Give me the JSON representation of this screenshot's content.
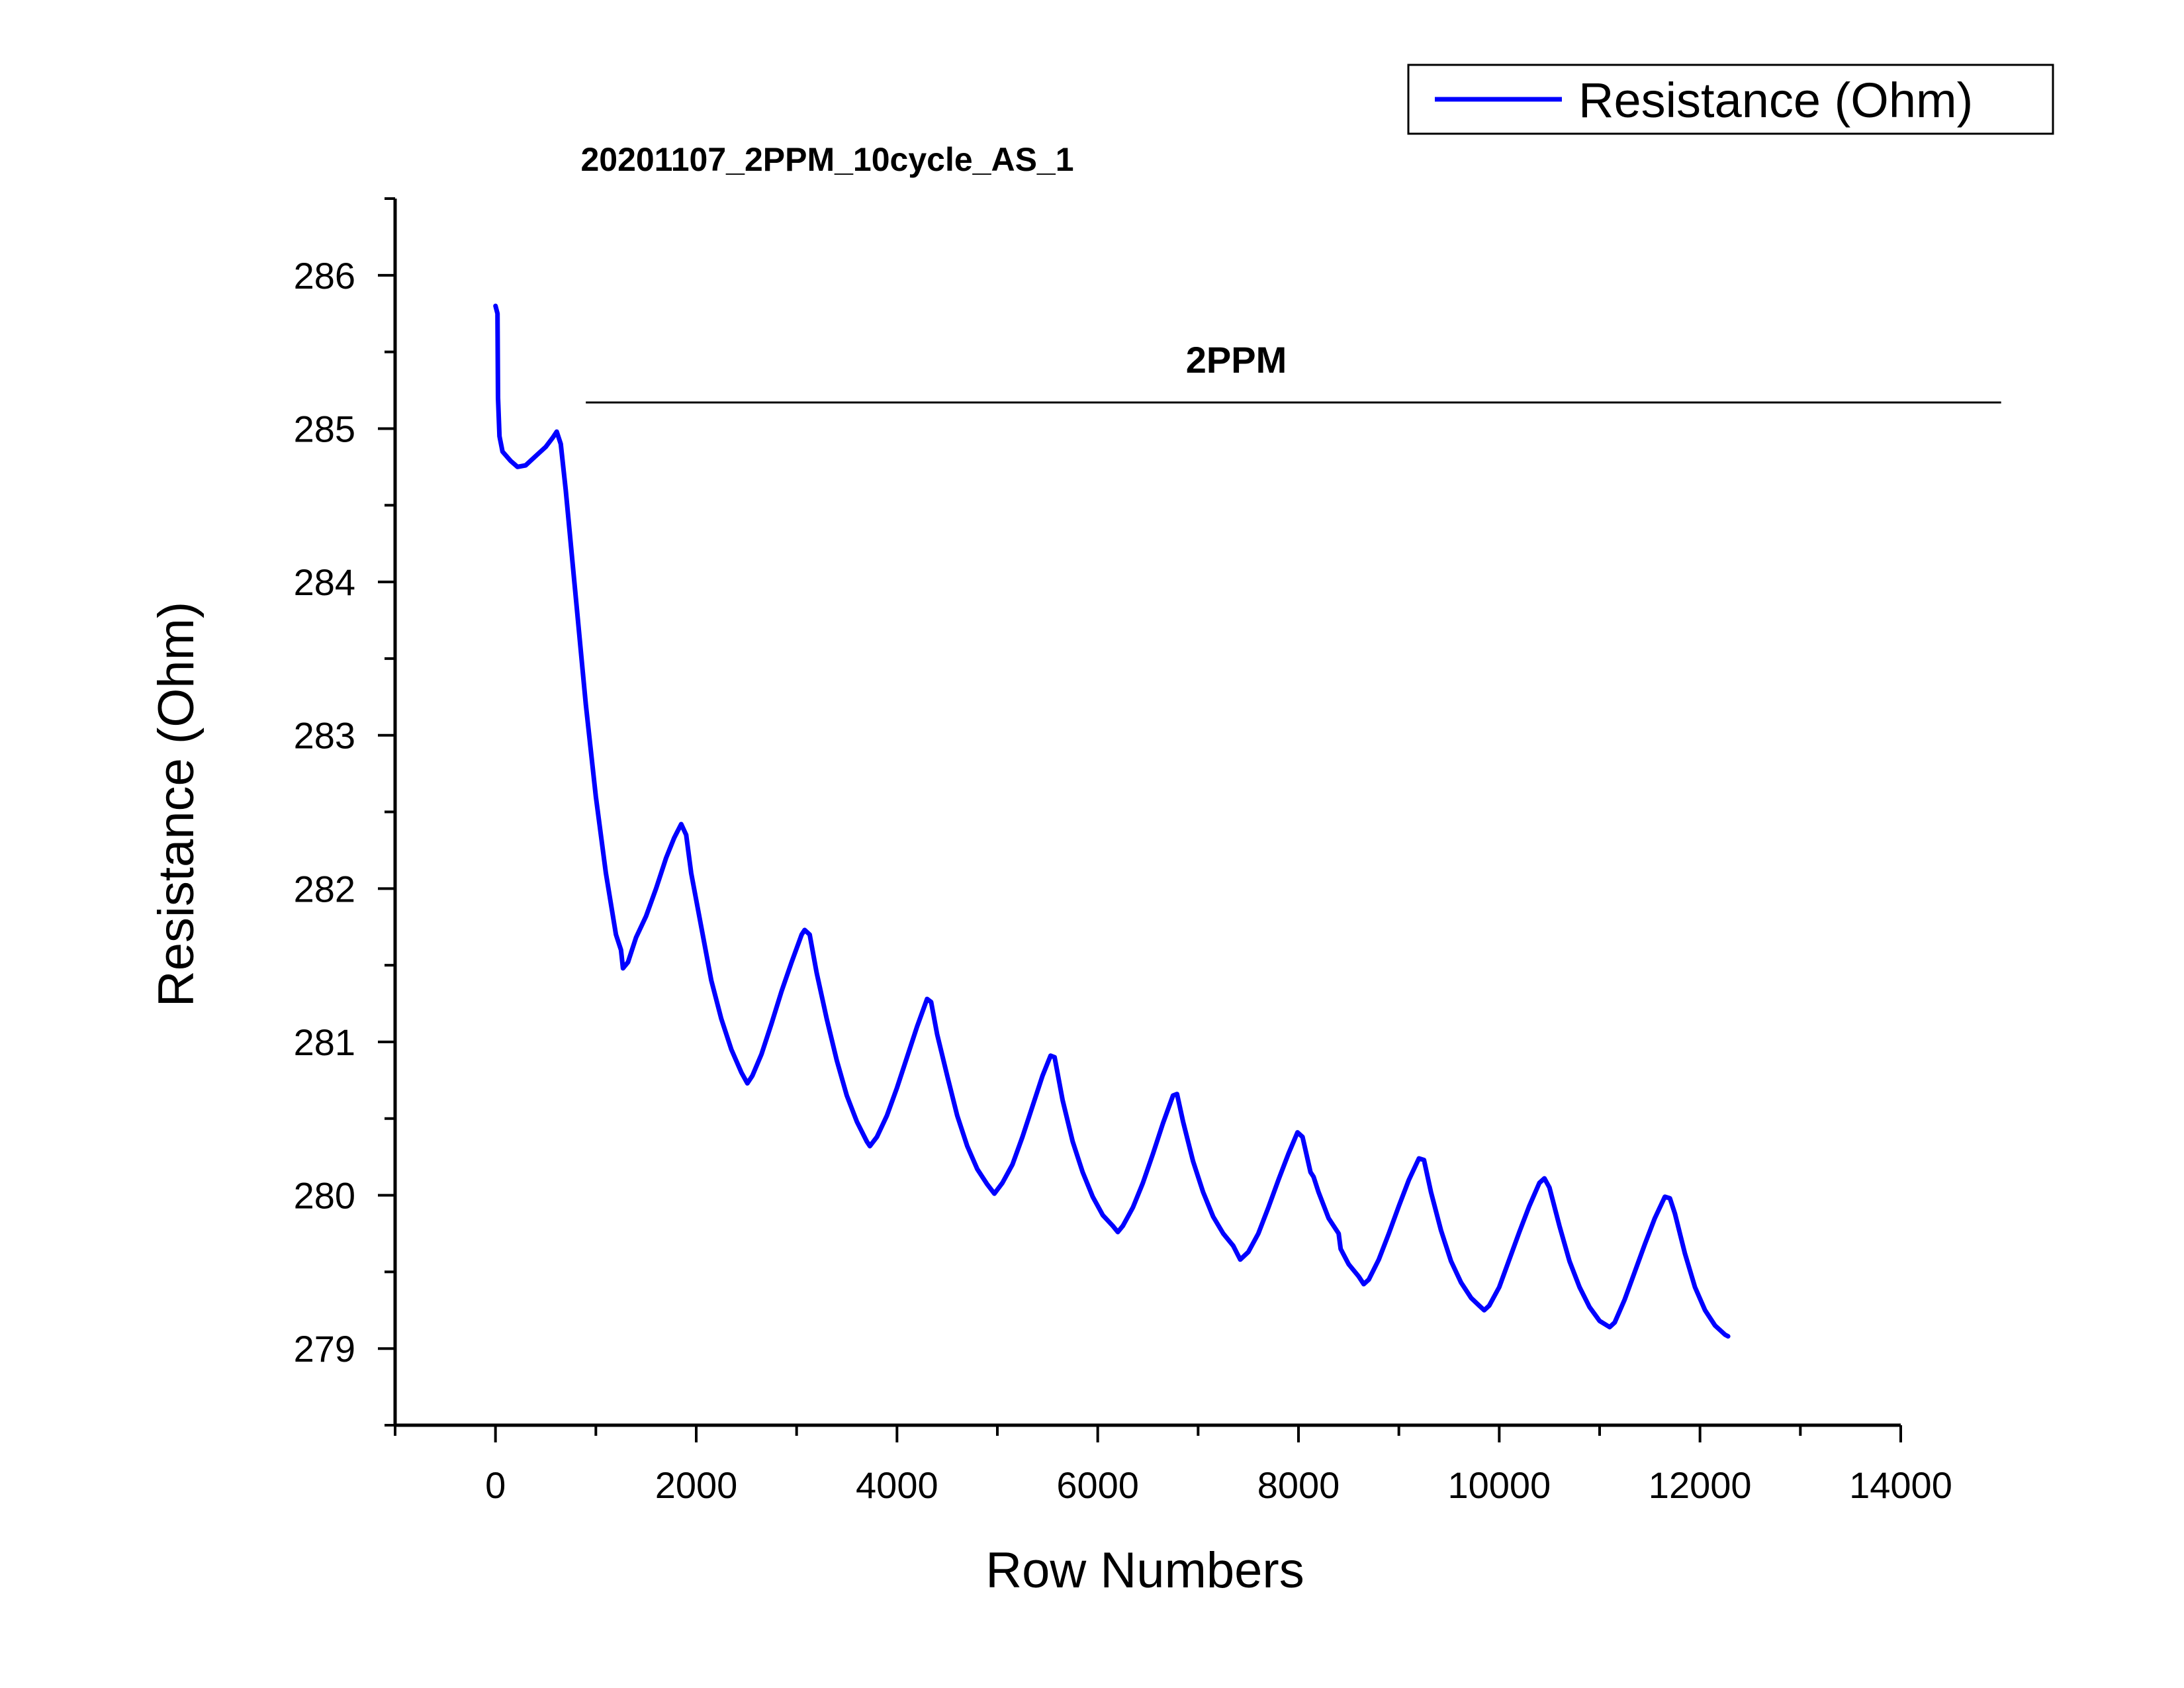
{
  "chart_data": {
    "type": "line",
    "title": "20201107_2PPM_10cycle_AS_1",
    "xlabel": "Row Numbers",
    "ylabel": "Resistance (Ohm)",
    "xlim": [
      -1000,
      14000
    ],
    "ylim": [
      278.5,
      286.5
    ],
    "xticks": [
      0,
      2000,
      4000,
      6000,
      8000,
      10000,
      12000,
      14000
    ],
    "yticks": [
      279,
      280,
      281,
      282,
      283,
      284,
      285,
      286
    ],
    "grid": false,
    "legend": {
      "position": "top-right",
      "entries": [
        "Resistance (Ohm)"
      ]
    },
    "annotation": {
      "label": "2PPM",
      "x_start": 900,
      "x_end": 15000,
      "y": 285.17
    },
    "series": [
      {
        "name": "Resistance (Ohm)",
        "color": "#0000ff",
        "points": [
          [
            0,
            285.8
          ],
          [
            20,
            285.75
          ],
          [
            25,
            285.2
          ],
          [
            40,
            284.95
          ],
          [
            70,
            284.85
          ],
          [
            150,
            284.79
          ],
          [
            220,
            284.75
          ],
          [
            300,
            284.76
          ],
          [
            400,
            284.82
          ],
          [
            500,
            284.88
          ],
          [
            570,
            284.94
          ],
          [
            610,
            284.98
          ],
          [
            650,
            284.9
          ],
          [
            700,
            284.6
          ],
          [
            800,
            283.9
          ],
          [
            900,
            283.2
          ],
          [
            1000,
            282.6
          ],
          [
            1100,
            282.1
          ],
          [
            1200,
            281.7
          ],
          [
            1250,
            281.6
          ],
          [
            1270,
            281.48
          ],
          [
            1320,
            281.52
          ],
          [
            1400,
            281.68
          ],
          [
            1500,
            281.82
          ],
          [
            1600,
            282.0
          ],
          [
            1700,
            282.2
          ],
          [
            1780,
            282.33
          ],
          [
            1850,
            282.42
          ],
          [
            1900,
            282.35
          ],
          [
            1950,
            282.1
          ],
          [
            2050,
            281.75
          ],
          [
            2150,
            281.4
          ],
          [
            2250,
            281.15
          ],
          [
            2350,
            280.95
          ],
          [
            2450,
            280.8
          ],
          [
            2510,
            280.73
          ],
          [
            2560,
            280.78
          ],
          [
            2650,
            280.92
          ],
          [
            2750,
            281.12
          ],
          [
            2850,
            281.33
          ],
          [
            2950,
            281.52
          ],
          [
            3050,
            281.7
          ],
          [
            3080,
            281.73
          ],
          [
            3130,
            281.7
          ],
          [
            3200,
            281.45
          ],
          [
            3300,
            281.15
          ],
          [
            3400,
            280.88
          ],
          [
            3500,
            280.65
          ],
          [
            3600,
            280.48
          ],
          [
            3700,
            280.35
          ],
          [
            3730,
            280.32
          ],
          [
            3800,
            280.38
          ],
          [
            3900,
            280.52
          ],
          [
            4000,
            280.7
          ],
          [
            4100,
            280.9
          ],
          [
            4200,
            281.1
          ],
          [
            4300,
            281.28
          ],
          [
            4340,
            281.26
          ],
          [
            4400,
            281.05
          ],
          [
            4500,
            280.78
          ],
          [
            4600,
            280.52
          ],
          [
            4700,
            280.32
          ],
          [
            4800,
            280.17
          ],
          [
            4900,
            280.07
          ],
          [
            4970,
            280.01
          ],
          [
            5050,
            280.08
          ],
          [
            5150,
            280.2
          ],
          [
            5250,
            280.38
          ],
          [
            5350,
            280.58
          ],
          [
            5450,
            280.78
          ],
          [
            5530,
            280.91
          ],
          [
            5570,
            280.9
          ],
          [
            5650,
            280.62
          ],
          [
            5750,
            280.35
          ],
          [
            5850,
            280.15
          ],
          [
            5950,
            279.99
          ],
          [
            6050,
            279.87
          ],
          [
            6150,
            279.8
          ],
          [
            6200,
            279.76
          ],
          [
            6250,
            279.8
          ],
          [
            6350,
            279.92
          ],
          [
            6450,
            280.08
          ],
          [
            6550,
            280.27
          ],
          [
            6650,
            280.47
          ],
          [
            6750,
            280.65
          ],
          [
            6790,
            280.66
          ],
          [
            6850,
            280.48
          ],
          [
            6950,
            280.22
          ],
          [
            7050,
            280.02
          ],
          [
            7150,
            279.86
          ],
          [
            7250,
            279.75
          ],
          [
            7350,
            279.67
          ],
          [
            7420,
            279.58
          ],
          [
            7500,
            279.63
          ],
          [
            7600,
            279.75
          ],
          [
            7700,
            279.92
          ],
          [
            7800,
            280.1
          ],
          [
            7900,
            280.27
          ],
          [
            7990,
            280.41
          ],
          [
            8040,
            280.38
          ],
          [
            8120,
            280.15
          ],
          [
            8150,
            280.12
          ],
          [
            8200,
            280.02
          ],
          [
            8300,
            279.85
          ],
          [
            8400,
            279.75
          ],
          [
            8420,
            279.65
          ],
          [
            8500,
            279.55
          ],
          [
            8600,
            279.47
          ],
          [
            8650,
            279.42
          ],
          [
            8700,
            279.45
          ],
          [
            8800,
            279.58
          ],
          [
            8900,
            279.75
          ],
          [
            9000,
            279.93
          ],
          [
            9100,
            280.1
          ],
          [
            9200,
            280.24
          ],
          [
            9250,
            280.23
          ],
          [
            9320,
            280.02
          ],
          [
            9420,
            279.77
          ],
          [
            9520,
            279.57
          ],
          [
            9620,
            279.43
          ],
          [
            9720,
            279.33
          ],
          [
            9800,
            279.28
          ],
          [
            9850,
            279.25
          ],
          [
            9900,
            279.28
          ],
          [
            10000,
            279.4
          ],
          [
            10100,
            279.58
          ],
          [
            10200,
            279.76
          ],
          [
            10300,
            279.93
          ],
          [
            10400,
            280.08
          ],
          [
            10450,
            280.11
          ],
          [
            10500,
            280.05
          ],
          [
            10600,
            279.8
          ],
          [
            10700,
            279.57
          ],
          [
            10800,
            279.4
          ],
          [
            10900,
            279.27
          ],
          [
            11000,
            279.18
          ],
          [
            11100,
            279.14
          ],
          [
            11150,
            279.17
          ],
          [
            11250,
            279.32
          ],
          [
            11350,
            279.5
          ],
          [
            11450,
            279.68
          ],
          [
            11550,
            279.85
          ],
          [
            11650,
            279.99
          ],
          [
            11700,
            279.98
          ],
          [
            11750,
            279.88
          ],
          [
            11850,
            279.62
          ],
          [
            11950,
            279.4
          ],
          [
            12050,
            279.25
          ],
          [
            12150,
            279.15
          ],
          [
            12250,
            279.09
          ],
          [
            12280,
            279.08
          ]
        ]
      }
    ]
  }
}
